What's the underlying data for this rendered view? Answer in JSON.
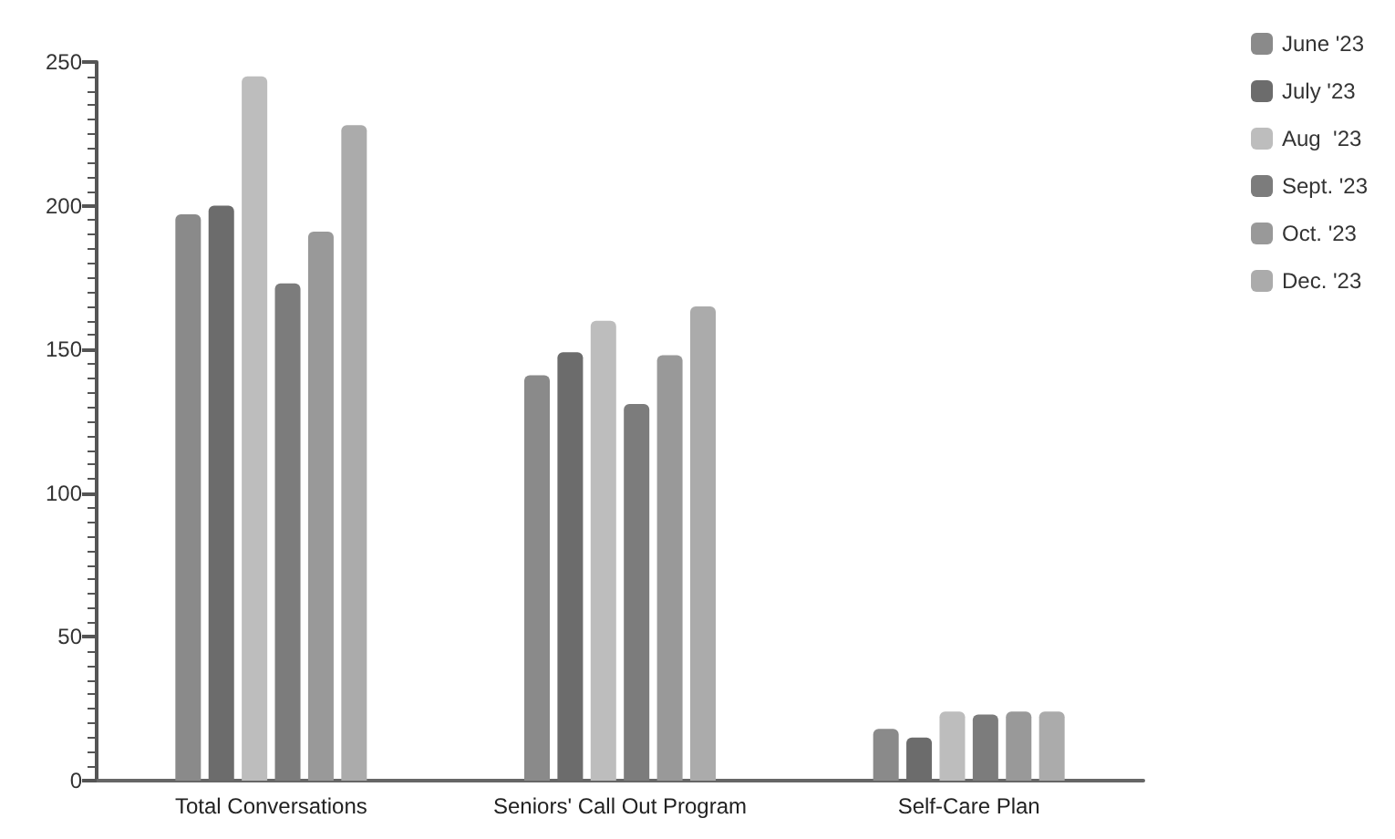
{
  "chart_data": {
    "type": "bar",
    "categories": [
      "Total Conversations",
      "Seniors' Call Out Program",
      "Self-Care Plan"
    ],
    "series": [
      {
        "name": "June '23",
        "color": "#8a8a8a",
        "values": [
          197,
          141,
          18
        ]
      },
      {
        "name": "July '23",
        "color": "#6c6c6c",
        "values": [
          200,
          149,
          15
        ]
      },
      {
        "name": "Aug  '23",
        "color": "#bdbdbd",
        "values": [
          245,
          160,
          24
        ]
      },
      {
        "name": "Sept. '23",
        "color": "#7c7c7c",
        "values": [
          173,
          131,
          23
        ]
      },
      {
        "name": "Oct. '23",
        "color": "#999999",
        "values": [
          191,
          148,
          24
        ]
      },
      {
        "name": "Dec. '23",
        "color": "#ababab",
        "values": [
          228,
          165,
          24
        ]
      }
    ],
    "ylim": [
      0,
      250
    ],
    "yticks": [
      0,
      50,
      100,
      150,
      200,
      250
    ],
    "grid": false,
    "legend": "top right"
  }
}
